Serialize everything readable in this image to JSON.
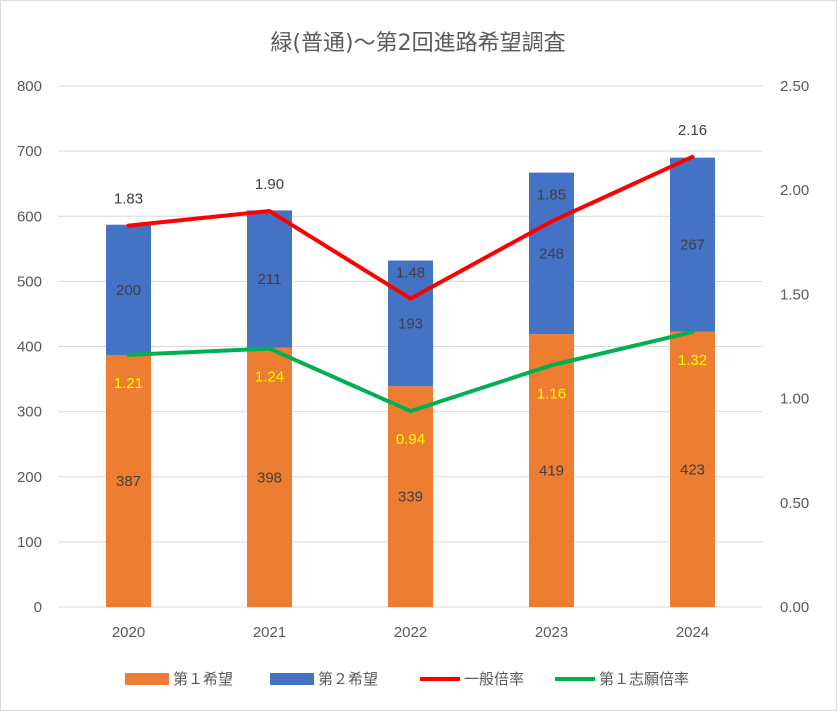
{
  "chart_data": {
    "type": "bar",
    "title": "緑(普通)～第2回進路希望調査",
    "categories": [
      "2020",
      "2021",
      "2022",
      "2023",
      "2024"
    ],
    "series": [
      {
        "name": "第１希望",
        "type": "bar",
        "stack": "applicants",
        "axis": "left",
        "color": "#ed7d31",
        "values": [
          387,
          398,
          339,
          419,
          423
        ]
      },
      {
        "name": "第２希望",
        "type": "bar",
        "stack": "applicants",
        "axis": "left",
        "color": "#4472c4",
        "values": [
          200,
          211,
          193,
          248,
          267
        ]
      },
      {
        "name": "一般倍率",
        "type": "line",
        "axis": "right",
        "color": "#ff0000",
        "values": [
          1.83,
          1.9,
          1.48,
          1.85,
          2.16
        ],
        "labels": [
          "1.83",
          "1.90",
          "1.48",
          "1.85",
          "2.16"
        ]
      },
      {
        "name": "第１志願倍率",
        "type": "line",
        "axis": "right",
        "color": "#00b050",
        "values": [
          1.21,
          1.24,
          0.94,
          1.16,
          1.32
        ],
        "labels": [
          "1.21",
          "1.24",
          "0.94",
          "1.16",
          "1.32"
        ]
      }
    ],
    "y_left": {
      "min": 0,
      "max": 800,
      "ticks": [
        "0",
        "100",
        "200",
        "300",
        "400",
        "500",
        "600",
        "700",
        "800"
      ]
    },
    "y_right": {
      "min": 0,
      "max": 2.5,
      "ticks": [
        "0.00",
        "0.50",
        "1.00",
        "1.50",
        "2.00",
        "2.50"
      ]
    },
    "grid": true,
    "legend_position": "bottom"
  }
}
